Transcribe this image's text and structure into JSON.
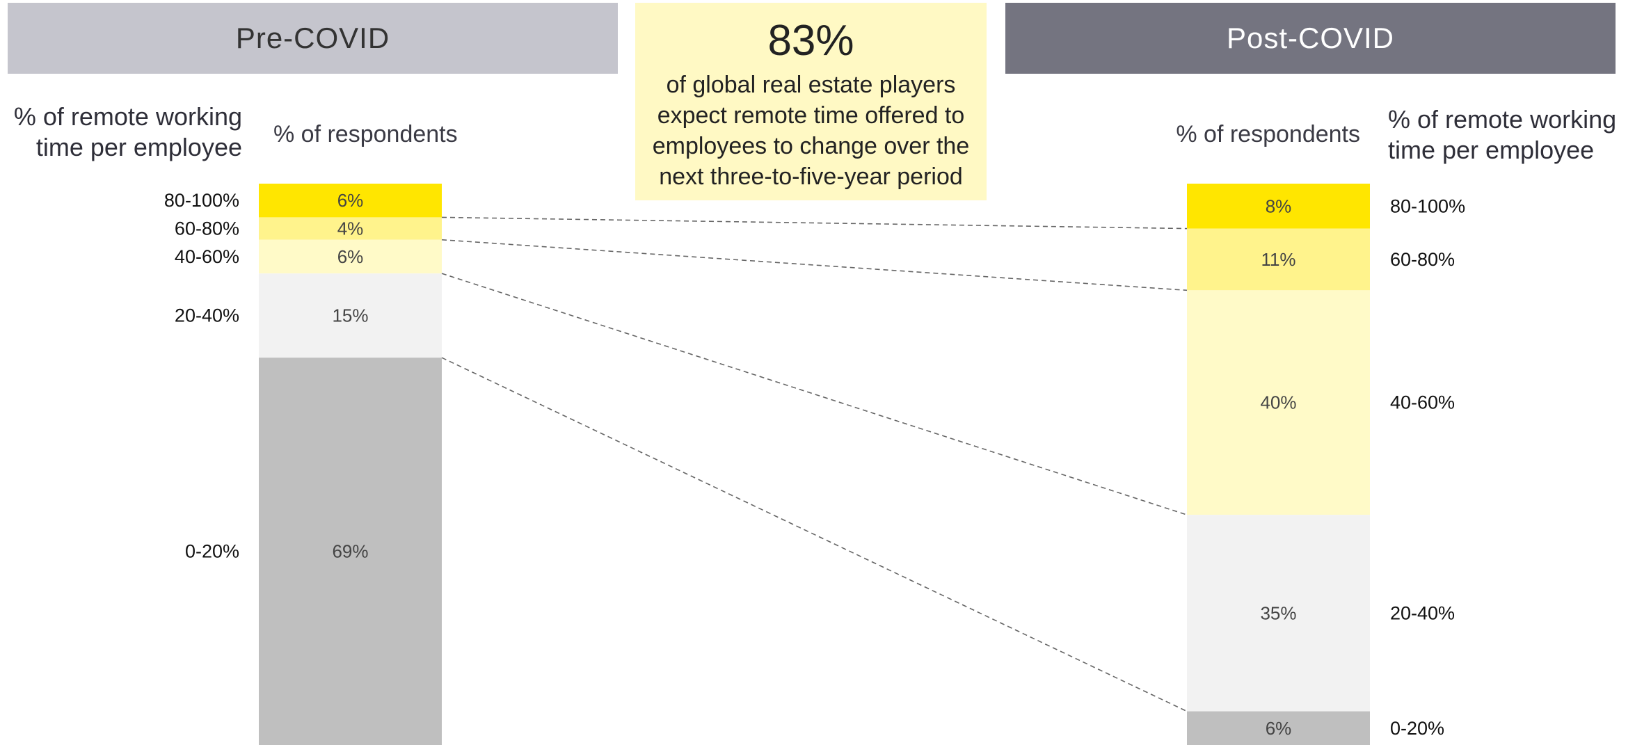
{
  "header": {
    "pre_label": "Pre-COVID",
    "post_label": "Post-COVID"
  },
  "callout": {
    "number": "83%",
    "text": "of global real estate players expect remote time offered to employees to change over the next three-to-five-year period"
  },
  "axis_titles": {
    "pre_range": "% of remote working\ntime per employee",
    "post_range": "% of remote working\ntime per employee",
    "pre_respondents": "% of respondents",
    "post_respondents": "% of respondents"
  },
  "colors": {
    "80-100%": "#ffe600",
    "60-80%": "#fff38c",
    "40-60%": "#fffac8",
    "20-40%": "#f2f2f2",
    "0-20%": "#bfbfbf",
    "connector": "#666666"
  },
  "chart_data": {
    "type": "bar",
    "stacked": true,
    "categories": [
      "80-100%",
      "60-80%",
      "40-60%",
      "20-40%",
      "0-20%"
    ],
    "series": [
      {
        "name": "Pre-COVID",
        "values": [
          6,
          4,
          6,
          15,
          69
        ],
        "labels": [
          "6%",
          "4%",
          "6%",
          "15%",
          "69%"
        ]
      },
      {
        "name": "Post-COVID",
        "values": [
          8,
          11,
          40,
          35,
          6
        ],
        "labels": [
          "8%",
          "11%",
          "40%",
          "35%",
          "6%"
        ]
      }
    ],
    "ylabel": "% of respondents",
    "xlabel": "% of remote working time per employee"
  }
}
